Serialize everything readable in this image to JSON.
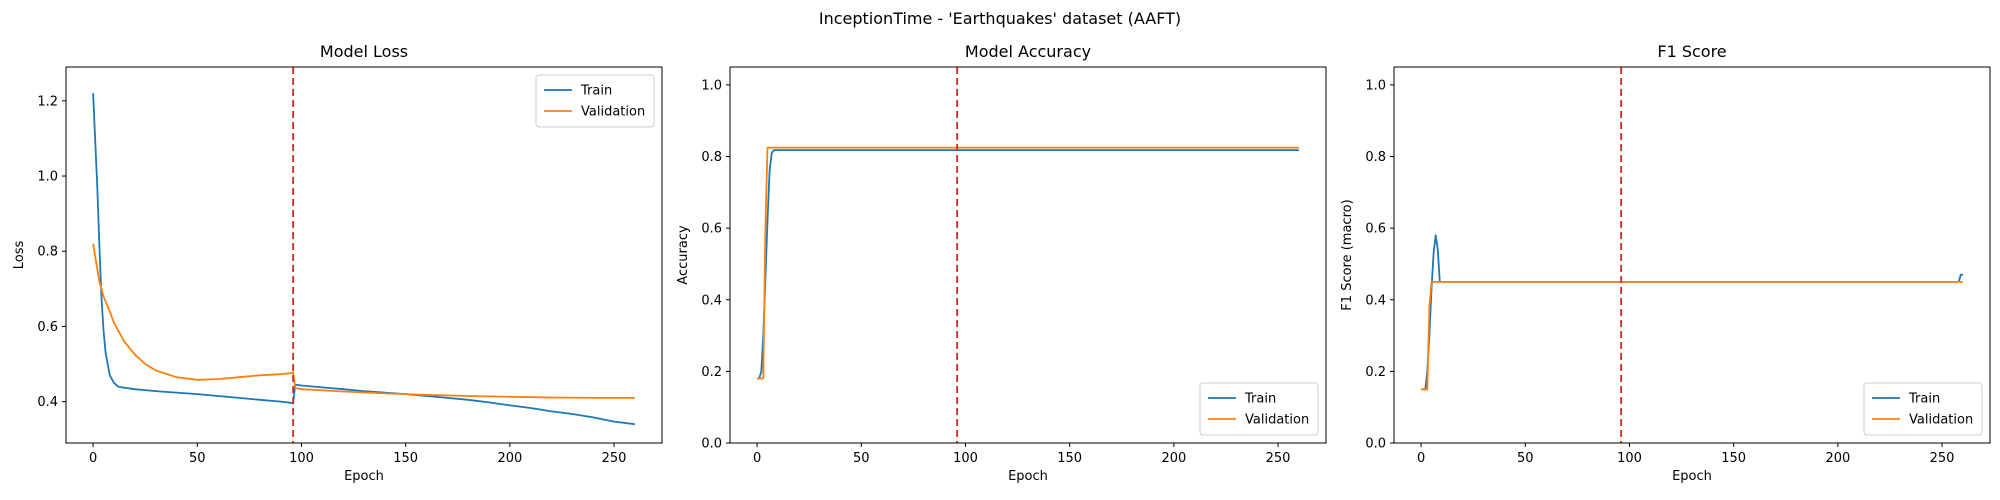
{
  "figure": {
    "suptitle": "InceptionTime - 'Earthquakes' dataset (AAFT)"
  },
  "colors": {
    "train": "#1f77b4",
    "validation": "#ff7f0e",
    "vline": "#d62728",
    "axis": "#000000",
    "legend_border": "#cccccc"
  },
  "chart_data": [
    {
      "type": "line",
      "title": "Model Loss",
      "xlabel": "Epoch",
      "ylabel": "Loss",
      "xlim": [
        -13,
        273
      ],
      "ylim": [
        0.29,
        1.29
      ],
      "xticks": [
        0,
        50,
        100,
        150,
        200,
        250
      ],
      "yticks": [
        0.4,
        0.6,
        0.8,
        1.0,
        1.2
      ],
      "ytick_labels": [
        "0.4",
        "0.6",
        "0.8",
        "1.0",
        "1.2"
      ],
      "vline_x": 96,
      "legend_position": "upper right",
      "series": [
        {
          "name": "Train",
          "color": "#1f77b4",
          "x": [
            0,
            2,
            3,
            4,
            5,
            6,
            7,
            8,
            10,
            12,
            15,
            20,
            30,
            40,
            50,
            60,
            70,
            80,
            90,
            95,
            96,
            97,
            100,
            110,
            120,
            130,
            140,
            150,
            160,
            170,
            180,
            190,
            200,
            210,
            220,
            230,
            240,
            250,
            260
          ],
          "y": [
            1.22,
            0.97,
            0.82,
            0.68,
            0.59,
            0.53,
            0.5,
            0.47,
            0.45,
            0.44,
            0.437,
            0.433,
            0.428,
            0.424,
            0.42,
            0.415,
            0.41,
            0.405,
            0.4,
            0.397,
            0.395,
            0.445,
            0.443,
            0.438,
            0.433,
            0.428,
            0.424,
            0.42,
            0.415,
            0.41,
            0.405,
            0.398,
            0.39,
            0.383,
            0.374,
            0.367,
            0.358,
            0.347,
            0.34
          ]
        },
        {
          "name": "Validation",
          "color": "#ff7f0e",
          "x": [
            0,
            3,
            5,
            8,
            10,
            15,
            20,
            25,
            30,
            40,
            50,
            60,
            70,
            80,
            90,
            95,
            96,
            97,
            100,
            120,
            140,
            160,
            180,
            200,
            220,
            240,
            260
          ],
          "y": [
            0.82,
            0.72,
            0.68,
            0.64,
            0.61,
            0.56,
            0.525,
            0.5,
            0.483,
            0.465,
            0.458,
            0.46,
            0.465,
            0.47,
            0.473,
            0.476,
            0.478,
            0.437,
            0.433,
            0.427,
            0.422,
            0.418,
            0.415,
            0.413,
            0.411,
            0.41,
            0.41
          ]
        }
      ]
    },
    {
      "type": "line",
      "title": "Model Accuracy",
      "xlabel": "Epoch",
      "ylabel": "Accuracy",
      "xlim": [
        -13,
        273
      ],
      "ylim": [
        0.0,
        1.05
      ],
      "xticks": [
        0,
        50,
        100,
        150,
        200,
        250
      ],
      "yticks": [
        0.0,
        0.2,
        0.4,
        0.6,
        0.8,
        1.0
      ],
      "ytick_labels": [
        "0.0",
        "0.2",
        "0.4",
        "0.6",
        "0.8",
        "1.0"
      ],
      "vline_x": 96,
      "legend_position": "lower right",
      "series": [
        {
          "name": "Train",
          "color": "#1f77b4",
          "x": [
            0,
            1,
            2,
            3,
            4,
            5,
            6,
            7,
            8,
            260
          ],
          "y": [
            0.18,
            0.18,
            0.2,
            0.3,
            0.46,
            0.62,
            0.76,
            0.81,
            0.818,
            0.818
          ]
        },
        {
          "name": "Validation",
          "color": "#ff7f0e",
          "x": [
            0,
            3,
            4,
            5,
            260
          ],
          "y": [
            0.18,
            0.18,
            0.6,
            0.825,
            0.825
          ]
        }
      ]
    },
    {
      "type": "line",
      "title": "F1 Score",
      "xlabel": "Epoch",
      "ylabel": "F1 Score (macro)",
      "xlim": [
        -13,
        273
      ],
      "ylim": [
        0.0,
        1.05
      ],
      "xticks": [
        0,
        50,
        100,
        150,
        200,
        250
      ],
      "yticks": [
        0.0,
        0.2,
        0.4,
        0.6,
        0.8,
        1.0
      ],
      "ytick_labels": [
        "0.0",
        "0.2",
        "0.4",
        "0.6",
        "0.8",
        "1.0"
      ],
      "vline_x": 96,
      "legend_position": "lower right",
      "series": [
        {
          "name": "Train",
          "color": "#1f77b4",
          "x": [
            0,
            2,
            3,
            4,
            5,
            6,
            7,
            8,
            9,
            258,
            259,
            260
          ],
          "y": [
            0.15,
            0.15,
            0.2,
            0.3,
            0.43,
            0.53,
            0.58,
            0.54,
            0.45,
            0.45,
            0.47,
            0.47
          ]
        },
        {
          "name": "Validation",
          "color": "#ff7f0e",
          "x": [
            0,
            3,
            4,
            5,
            6,
            260
          ],
          "y": [
            0.15,
            0.15,
            0.38,
            0.45,
            0.45,
            0.45
          ]
        }
      ]
    }
  ]
}
